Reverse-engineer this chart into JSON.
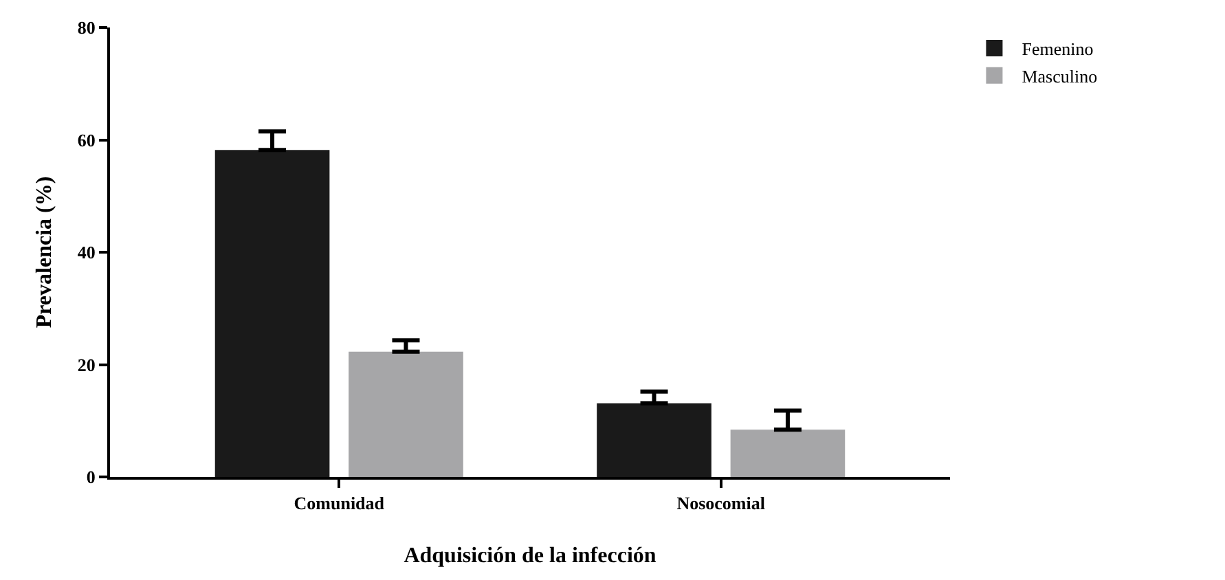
{
  "chart_data": {
    "type": "bar",
    "xlabel": "Adquisición de la infección",
    "ylabel": "Prevalencia (%)",
    "categories": [
      "Comunidad",
      "Nosocomial"
    ],
    "series": [
      {
        "name": "Femenino",
        "color": "#1a1a1a",
        "values": [
          58.2,
          13.1
        ],
        "errors": [
          [
            58.2,
            61.5
          ],
          [
            13.1,
            15.2
          ]
        ]
      },
      {
        "name": "Masculino",
        "color": "#a6a6a8",
        "values": [
          22.3,
          8.4
        ],
        "errors": [
          [
            22.3,
            24.3
          ],
          [
            8.4,
            11.8
          ]
        ]
      }
    ],
    "ylim": [
      0,
      80
    ],
    "yticks": [
      0,
      20,
      40,
      60,
      80
    ],
    "legend": "top right"
  }
}
